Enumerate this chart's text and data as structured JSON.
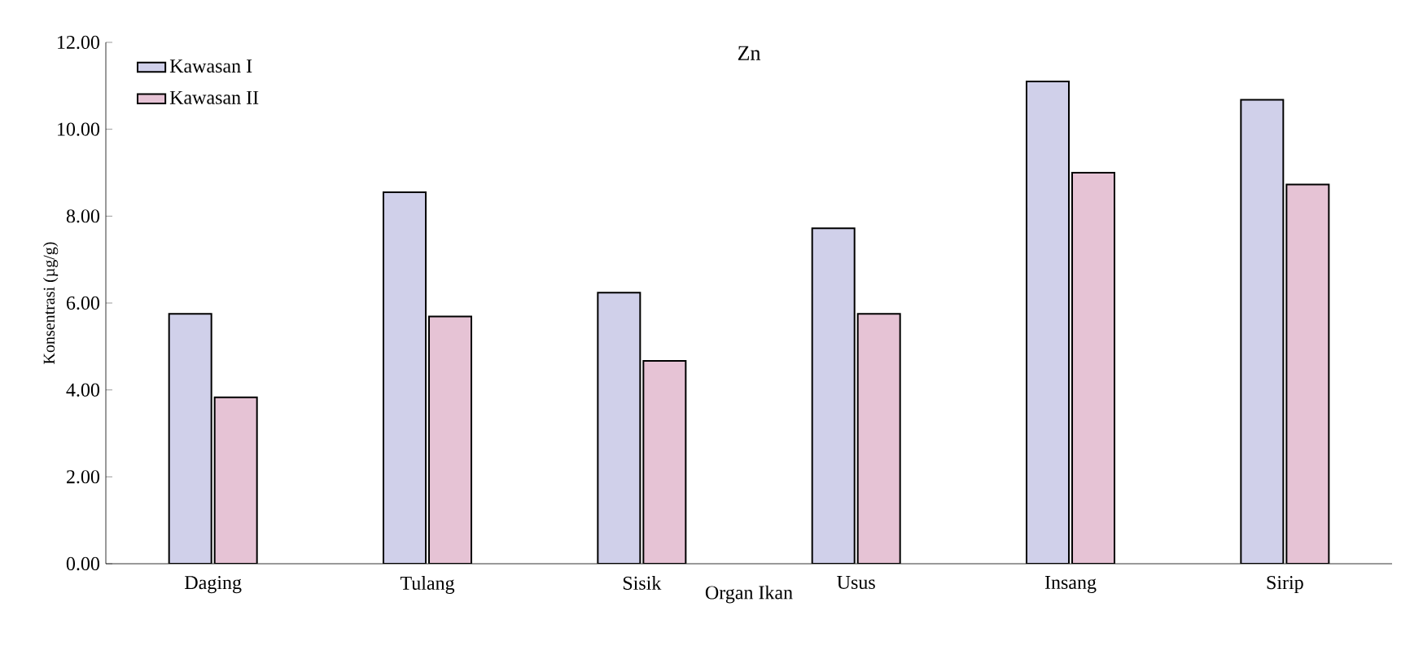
{
  "chart_data": {
    "type": "bar",
    "title": "Zn",
    "xlabel": "Organ Ikan",
    "ylabel": "Konsentrasi (µg/g)",
    "categories": [
      "Daging",
      "Tulang",
      "Sisik",
      "Usus",
      "Insang",
      "Sirip"
    ],
    "series": [
      {
        "name": "Kawasan I",
        "color": "#d0d0ea",
        "values": [
          5.75,
          8.55,
          6.24,
          7.72,
          11.1,
          10.68
        ]
      },
      {
        "name": "Kawasan II",
        "color": "#e6c3d5",
        "values": [
          3.83,
          5.69,
          4.67,
          5.75,
          9.0,
          8.73
        ]
      }
    ],
    "ylim": [
      0,
      12
    ],
    "yticks": [
      {
        "value": 0,
        "label": "0.00"
      },
      {
        "value": 2,
        "label": "2.00"
      },
      {
        "value": 4,
        "label": "4.00"
      },
      {
        "value": 6,
        "label": "6.00"
      },
      {
        "value": 8,
        "label": "8.00"
      },
      {
        "value": 10,
        "label": "10.00"
      },
      {
        "value": 12,
        "label": "12.00"
      }
    ],
    "grid": false,
    "legend": "top left"
  }
}
